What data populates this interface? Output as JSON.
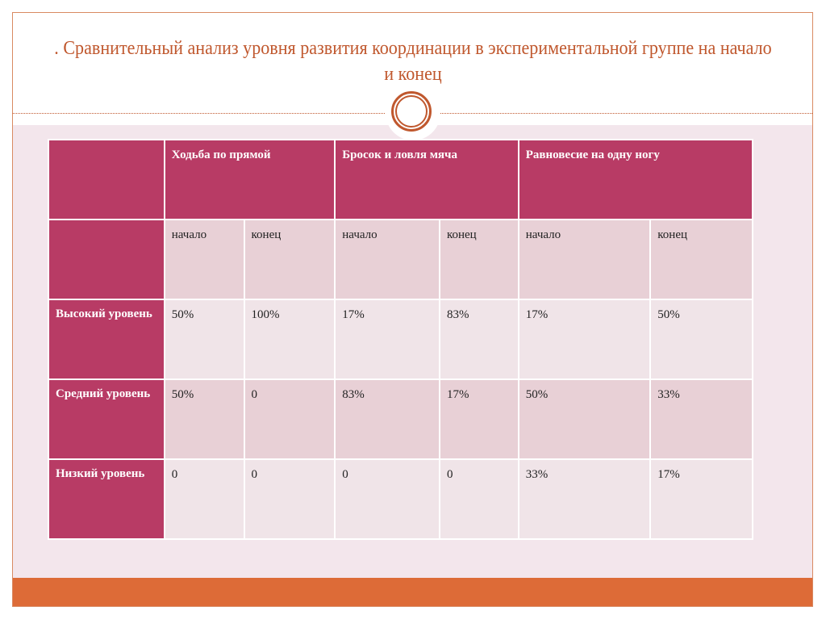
{
  "title": ". Сравнительный анализ уровня развития координации в экспериментальной группе на начало и конец",
  "colors": {
    "accent": "#c0582e",
    "header": "#b83b65",
    "band": "#dd6b37",
    "background": "#f3e6ec"
  },
  "table": {
    "groups": [
      "Ходьба по прямой",
      "Бросок и ловля мяча",
      "Равновесие на одну ногу"
    ],
    "subheaders": [
      "начало",
      "конец",
      "начало",
      "конец",
      "начало",
      "конец"
    ],
    "rows": [
      {
        "label": "Высокий уровень",
        "values": [
          "50%",
          "100%",
          "17%",
          "83%",
          "17%",
          "50%"
        ]
      },
      {
        "label": "Средний уровень",
        "values": [
          "50%",
          "0",
          "83%",
          "17%",
          "50%",
          "33%"
        ]
      },
      {
        "label": "Низкий уровень",
        "values": [
          "0",
          "0",
          "0",
          "0",
          "33%",
          "17%"
        ]
      }
    ]
  }
}
